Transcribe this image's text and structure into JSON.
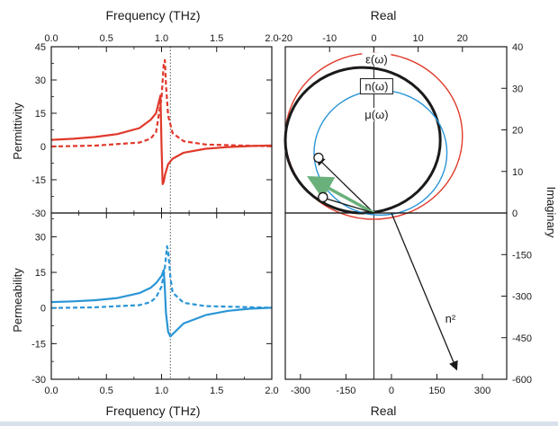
{
  "chart_data": [
    {
      "type": "line",
      "panel": "permittivity",
      "top_xlabel": "Frequency (THz)",
      "ylabel": "Permittivity",
      "xlim": [
        0.0,
        2.0
      ],
      "ylim": [
        -30,
        45
      ],
      "x_ticks": [
        "0.0",
        "0.5",
        "1.0",
        "1.5",
        "2.0"
      ],
      "y_ticks": [
        "45",
        "30",
        "15",
        "0",
        "-15",
        "-30"
      ],
      "vertical_marker_x": 1.08,
      "resonances": {
        "solid": 1.0,
        "dashed": 1.03
      },
      "series": [
        {
          "style": "solid",
          "color": "#e0392b",
          "x": [
            0.0,
            0.2,
            0.4,
            0.6,
            0.8,
            0.9,
            0.95,
            0.98,
            0.99,
            1.0,
            1.01,
            1.02,
            1.03,
            1.06,
            1.1,
            1.2,
            1.4,
            1.6,
            1.8,
            2.0
          ],
          "y": [
            3,
            3.5,
            4.3,
            5.6,
            8.3,
            12,
            15,
            21,
            23,
            0,
            -17,
            -16,
            -13,
            -8,
            -5.5,
            -2.8,
            -1,
            -0.3,
            0.2,
            0.5
          ]
        },
        {
          "style": "dashed",
          "color": "#e0392b",
          "x": [
            0.0,
            0.4,
            0.8,
            0.9,
            0.95,
            1.0,
            1.02,
            1.03,
            1.04,
            1.06,
            1.1,
            1.2,
            1.4,
            2.0
          ],
          "y": [
            0,
            0.4,
            1.8,
            3.5,
            6.5,
            22,
            37,
            39,
            28,
            14,
            6,
            2.4,
            0.9,
            0.1
          ]
        }
      ]
    },
    {
      "type": "line",
      "panel": "permeability",
      "xlabel": "Frequency (THz)",
      "ylabel": "Permeability",
      "xlim": [
        0.0,
        2.0
      ],
      "ylim": [
        -30,
        40
      ],
      "x_ticks": [
        "0.0",
        "0.5",
        "1.0",
        "1.5",
        "2.0"
      ],
      "y_ticks": [
        "30",
        "15",
        "0",
        "-15",
        "-30"
      ],
      "vertical_marker_x": 1.08,
      "series": [
        {
          "style": "solid",
          "color": "#2a95d6",
          "x": [
            0.0,
            0.2,
            0.4,
            0.6,
            0.8,
            0.9,
            0.95,
            1.0,
            1.02,
            1.03,
            1.04,
            1.06,
            1.08,
            1.1,
            1.2,
            1.4,
            1.6,
            1.8,
            2.0
          ],
          "y": [
            2.5,
            2.8,
            3.3,
            4.2,
            6.3,
            8.5,
            10.5,
            13.5,
            16,
            8,
            -2,
            -10,
            -12,
            -11,
            -6.5,
            -3,
            -1.2,
            -0.3,
            0.1
          ]
        },
        {
          "style": "dashed",
          "color": "#2a95d6",
          "x": [
            0.0,
            0.4,
            0.8,
            0.9,
            0.95,
            1.0,
            1.03,
            1.05,
            1.06,
            1.08,
            1.1,
            1.2,
            1.4,
            2.0
          ],
          "y": [
            0,
            0.3,
            1.2,
            2.5,
            4.5,
            9,
            17,
            26,
            24,
            13,
            6.5,
            2.2,
            0.8,
            0.1
          ]
        }
      ]
    },
    {
      "type": "scatter",
      "panel": "complex-plane-upper",
      "top_xlabel": "Real",
      "ylabel": "Imaginary",
      "xlim": [
        -20,
        30
      ],
      "ylim": [
        0,
        40
      ],
      "x_ticks": [
        "-20",
        "-10",
        "0",
        "10",
        "20"
      ],
      "y_ticks": [
        "40",
        "30",
        "20",
        "10",
        "0"
      ],
      "circles": [
        {
          "label": "ε(ω)",
          "color": "#e0392b",
          "center": [
            0,
            18.5
          ],
          "radius": 20
        },
        {
          "label": "n(ω)",
          "color": "#1a1a1a",
          "center": [
            -2.5,
            17.5
          ],
          "radius": 17.5
        },
        {
          "label": "μ(ω)",
          "color": "#2a95d6",
          "center": [
            1.5,
            14.5
          ],
          "radius": 15
        }
      ],
      "markers": [
        [
          -12.5,
          13.3
        ],
        [
          -11.5,
          3.8
        ]
      ],
      "vectors": [
        {
          "from": [
            0,
            0
          ],
          "to": [
            -13,
            13.5
          ],
          "color": "#1a1a1a"
        },
        {
          "from": [
            0,
            0
          ],
          "to": [
            -14.5,
            8.5
          ],
          "color": "#6ab07a"
        },
        {
          "from": [
            0,
            0
          ],
          "to": [
            -12.5,
            4
          ],
          "color": "#1a1a1a"
        }
      ]
    },
    {
      "type": "scatter",
      "panel": "complex-plane-lower",
      "xlabel": "Real",
      "xlim": [
        -350,
        380
      ],
      "ylim": [
        -600,
        0
      ],
      "x_ticks": [
        "-300",
        "-150",
        "0",
        "150",
        "300"
      ],
      "y_ticks": [
        "0",
        "-150",
        "-300",
        "-450",
        "-600"
      ],
      "vector": {
        "label": "n²",
        "from": [
          0,
          0
        ],
        "to": [
          215,
          -565
        ],
        "color": "#1a1a1a"
      }
    }
  ]
}
